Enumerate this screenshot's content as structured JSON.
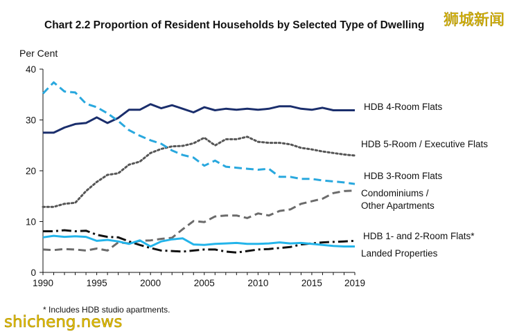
{
  "chart_data": {
    "type": "line",
    "title": "Chart 2.2  Proportion of Resident Households by Selected Type of Dwelling",
    "ylabel": "Per Cent",
    "xlabel": "",
    "ylim": [
      0,
      40
    ],
    "xlim": [
      1990,
      2019
    ],
    "yticks": [
      "0",
      "10",
      "20",
      "30",
      "40"
    ],
    "xticks": [
      "1990",
      "1995",
      "2000",
      "2005",
      "2010",
      "2015",
      "2019"
    ],
    "grid": false,
    "legend": "direct labels at right end of lines",
    "x": [
      1990,
      1991,
      1992,
      1993,
      1994,
      1995,
      1996,
      1997,
      1998,
      1999,
      2000,
      2001,
      2002,
      2003,
      2004,
      2005,
      2006,
      2007,
      2008,
      2009,
      2010,
      2011,
      2012,
      2013,
      2014,
      2015,
      2016,
      2017,
      2018,
      2019
    ],
    "series": [
      {
        "name": "HDB 4-Room Flats",
        "color": "#1a2e6c",
        "style": "solid",
        "values": [
          27.5,
          27.5,
          28.5,
          29.2,
          29.4,
          30.5,
          29.4,
          30.4,
          32.0,
          32.0,
          33.1,
          32.3,
          32.9,
          32.2,
          31.5,
          32.5,
          31.9,
          32.2,
          32.0,
          32.2,
          32.0,
          32.2,
          32.7,
          32.7,
          32.2,
          32.0,
          32.4,
          31.9,
          31.9,
          31.9
        ]
      },
      {
        "name": "HDB 5-Room / Executive Flats",
        "color": "#555555",
        "style": "dotted",
        "values": [
          12.9,
          12.9,
          13.5,
          13.7,
          16.0,
          17.8,
          19.2,
          19.5,
          21.2,
          21.8,
          23.5,
          24.3,
          24.8,
          24.9,
          25.4,
          26.5,
          25.0,
          26.2,
          26.2,
          26.7,
          25.7,
          25.5,
          25.5,
          25.2,
          24.5,
          24.2,
          23.8,
          23.5,
          23.2,
          23.0
        ]
      },
      {
        "name": "HDB 3-Room Flats",
        "color": "#29a8de",
        "style": "dashed",
        "values": [
          35.2,
          37.4,
          35.6,
          35.4,
          33.2,
          32.5,
          31.3,
          29.8,
          28.0,
          26.9,
          26.0,
          25.3,
          24.0,
          23.1,
          22.6,
          21.0,
          22.0,
          20.8,
          20.6,
          20.4,
          20.2,
          20.4,
          18.8,
          18.8,
          18.4,
          18.4,
          18.1,
          17.9,
          17.7,
          17.4
        ]
      },
      {
        "name": "Condominiums / Other Apartments",
        "color": "#6b6b6b",
        "style": "dashed",
        "values": [
          4.5,
          4.4,
          4.6,
          4.5,
          4.3,
          4.7,
          4.3,
          5.9,
          5.7,
          6.2,
          6.3,
          6.6,
          6.8,
          8.5,
          10.1,
          9.9,
          11.0,
          11.2,
          11.2,
          10.7,
          11.6,
          11.2,
          12.1,
          12.4,
          13.5,
          14.0,
          14.5,
          15.6,
          16.0,
          16.1
        ]
      },
      {
        "name": "HDB 1- and 2-Room Flats*",
        "color": "#111111",
        "style": "dashdot",
        "values": [
          8.1,
          8.1,
          8.3,
          8.1,
          8.2,
          7.4,
          7.0,
          6.9,
          6.1,
          5.4,
          4.8,
          4.3,
          4.2,
          4.1,
          4.3,
          4.5,
          4.5,
          4.1,
          3.9,
          4.2,
          4.5,
          4.6,
          4.8,
          5.0,
          5.5,
          5.7,
          5.9,
          6.0,
          6.1,
          6.2
        ]
      },
      {
        "name": "Landed Properties",
        "color": "#23b4ea",
        "style": "solid",
        "values": [
          6.9,
          7.2,
          7.0,
          7.1,
          7.0,
          6.2,
          6.4,
          6.1,
          5.6,
          6.3,
          5.1,
          6.1,
          6.5,
          6.7,
          5.5,
          5.4,
          5.6,
          5.7,
          5.8,
          5.6,
          5.6,
          5.7,
          5.9,
          5.7,
          5.8,
          5.6,
          5.4,
          5.2,
          5.1,
          5.1
        ]
      }
    ],
    "series_labels": [
      {
        "lines": [
          "HDB 4-Room Flats"
        ]
      },
      {
        "lines": [
          "HDB 5-Room / Executive  Flats"
        ]
      },
      {
        "lines": [
          "HDB 3-Room Flats"
        ]
      },
      {
        "lines": [
          "Condominiums /",
          "Other Apartments"
        ]
      },
      {
        "lines": [
          "HDB 1- and 2-Room Flats*"
        ]
      },
      {
        "lines": [
          "Landed Properties"
        ]
      }
    ],
    "footnote": "*  Includes HDB studio apartments."
  },
  "watermarks": {
    "top_right": "狮城新闻",
    "bottom_left": "shicheng.news"
  }
}
